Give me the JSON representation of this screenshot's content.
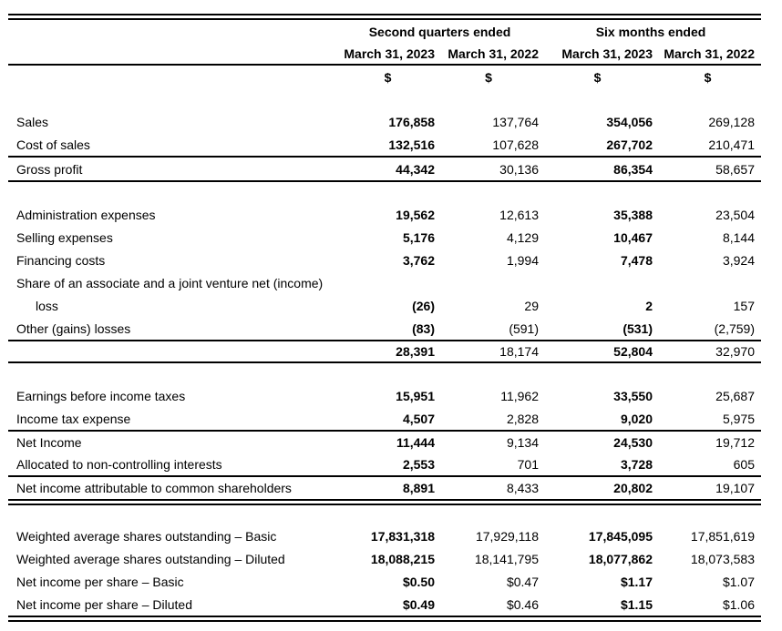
{
  "table": {
    "column_groups": [
      "Second quarters ended",
      "Six months ended"
    ],
    "column_headers": [
      "March 31, 2023",
      "March 31, 2022",
      "March 31, 2023",
      "March 31, 2022"
    ],
    "currency_row": [
      "$",
      "$",
      "$",
      "$"
    ],
    "text_color": "#000000",
    "background_color": "#ffffff",
    "sections": [
      {
        "name": "gross-profit",
        "rows": [
          {
            "label": "Sales",
            "values": [
              "176,858",
              "137,764",
              "354,056",
              "269,128"
            ]
          },
          {
            "label": "Cost of sales",
            "values": [
              "132,516",
              "107,628",
              "267,702",
              "210,471"
            ],
            "underline": "single"
          },
          {
            "label": "Gross profit",
            "values": [
              "44,342",
              "30,136",
              "86,354",
              "58,657"
            ],
            "underline": "single"
          }
        ]
      },
      {
        "name": "expenses",
        "rows": [
          {
            "label": "Administration expenses",
            "values": [
              "19,562",
              "12,613",
              "35,388",
              "23,504"
            ]
          },
          {
            "label": "Selling expenses",
            "values": [
              "5,176",
              "4,129",
              "10,467",
              "8,144"
            ]
          },
          {
            "label": "Financing costs",
            "values": [
              "3,762",
              "1,994",
              "7,478",
              "3,924"
            ]
          },
          {
            "label": "Share of an associate and a joint venture net (income)",
            "values": [
              "",
              "",
              "",
              ""
            ]
          },
          {
            "label": "loss",
            "indent": true,
            "values": [
              "(26)",
              "29",
              "2",
              "157"
            ]
          },
          {
            "label": "Other (gains) losses",
            "values": [
              "(83)",
              "(591)",
              "(531)",
              "(2,759)"
            ],
            "underline": "single"
          },
          {
            "label": "",
            "total": true,
            "values": [
              "28,391",
              "18,174",
              "52,804",
              "32,970"
            ],
            "underline": "single"
          }
        ]
      },
      {
        "name": "earnings",
        "rows": [
          {
            "label": "Earnings before income taxes",
            "values": [
              "15,951",
              "11,962",
              "33,550",
              "25,687"
            ]
          },
          {
            "label": "Income tax expense",
            "values": [
              "4,507",
              "2,828",
              "9,020",
              "5,975"
            ],
            "underline": "single"
          },
          {
            "label": "Net Income",
            "values": [
              "11,444",
              "9,134",
              "24,530",
              "19,712"
            ]
          },
          {
            "label": "Allocated to non-controlling interests",
            "values": [
              "2,553",
              "701",
              "3,728",
              "605"
            ],
            "underline": "single"
          },
          {
            "label": "Net income attributable to common shareholders",
            "values": [
              "8,891",
              "8,433",
              "20,802",
              "19,107"
            ],
            "underline": "double"
          }
        ]
      },
      {
        "name": "per-share",
        "rows": [
          {
            "label": "Weighted average shares outstanding – Basic",
            "values": [
              "17,831,318",
              "17,929,118",
              "17,845,095",
              "17,851,619"
            ]
          },
          {
            "label": "Weighted average shares outstanding – Diluted",
            "values": [
              "18,088,215",
              "18,141,795",
              "18,077,862",
              "18,073,583"
            ]
          },
          {
            "label": "Net income per share – Basic",
            "values": [
              "$0.50",
              "$0.47",
              "$1.17",
              "$1.07"
            ]
          },
          {
            "label": "Net income per share – Diluted",
            "values": [
              "$0.49",
              "$0.46",
              "$1.15",
              "$1.06"
            ],
            "underline": "double"
          }
        ]
      }
    ]
  }
}
